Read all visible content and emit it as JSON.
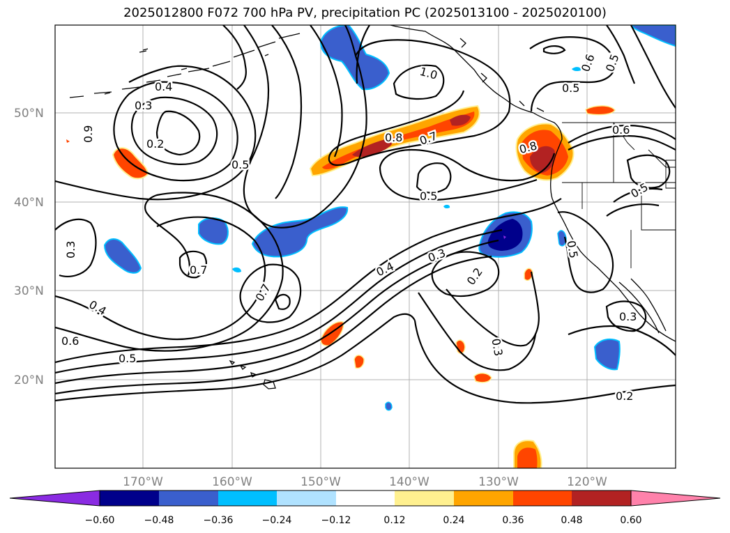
{
  "title": "2025012800 F072 700 hPa PV, precipitation PC (2025013100 - 2025020100)",
  "map": {
    "lat_labels": [
      "50°N",
      "40°N",
      "30°N",
      "20°N"
    ],
    "lon_labels": [
      "170°W",
      "160°W",
      "150°W",
      "140°W",
      "130°W",
      "120°W"
    ],
    "contour_labels": [
      "0.4",
      "0.3",
      "0.2",
      "0.5",
      "0.6",
      "0.9",
      "0.3",
      "0.7",
      "0.7",
      "0.4",
      "0.6",
      "0.5",
      "0.4",
      "0.3",
      "0.2",
      "0.3",
      "0.5",
      "0.8",
      "0.7",
      "1.0",
      "0.5",
      "0.8",
      "0.6",
      "0.6",
      "0.5",
      "0.5",
      "0.6",
      "0.5",
      "0.5",
      "0.3",
      "0.2"
    ]
  },
  "colorbar": {
    "ticks": [
      "−0.60",
      "−0.48",
      "−0.36",
      "−0.24",
      "−0.12",
      "0.12",
      "0.24",
      "0.36",
      "0.48",
      "0.60"
    ],
    "colors": [
      "#8a2be2",
      "#00008b",
      "#3a5fcd",
      "#00bfff",
      "#b0e2ff",
      "#ffffff",
      "#fff08f",
      "#ffa500",
      "#ff4500",
      "#b22222",
      "#ff82ab"
    ]
  },
  "colors": {
    "pos_light": "#fff08f",
    "pos_orange": "#ffa500",
    "pos_red": "#ff4500",
    "pos_dark": "#b22222",
    "neg_light": "#b0e2ff",
    "neg_cyan": "#00bfff",
    "neg_blue": "#3a5fcd",
    "neg_navy": "#00008b",
    "neg_purple": "#8a2be2"
  }
}
